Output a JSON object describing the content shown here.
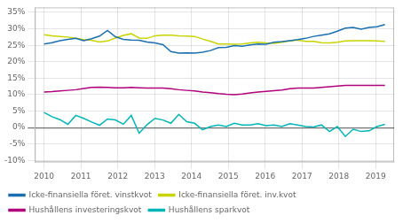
{
  "chart_data": {
    "type": "line",
    "x": [
      2010,
      2010.215116,
      2010.430233,
      2010.645349,
      2010.860465,
      2011.075581,
      2011.290698,
      2011.505814,
      2011.72093,
      2011.936047,
      2012.151163,
      2012.366279,
      2012.581395,
      2012.796512,
      2013.011628,
      2013.226744,
      2013.44186,
      2013.656977,
      2013.872093,
      2014.087209,
      2014.302326,
      2014.517442,
      2014.732558,
      2014.947674,
      2015.162791,
      2015.377907,
      2015.593023,
      2015.80814,
      2016.023256,
      2016.238372,
      2016.453488,
      2016.668605,
      2016.883721,
      2017.098837,
      2017.313953,
      2017.52907,
      2017.744186,
      2017.959302,
      2018.174419,
      2018.389535,
      2018.604651,
      2018.819767,
      2019.034884,
      2019.25
    ],
    "series": [
      {
        "name": "Icke-finansiella föret. vinstkvot",
        "color": "#1a6faf",
        "values": [
          0.254,
          0.258,
          0.264,
          0.268,
          0.271,
          0.264,
          0.27,
          0.278,
          0.295,
          0.276,
          0.268,
          0.266,
          0.265,
          0.26,
          0.257,
          0.252,
          0.231,
          0.226,
          0.227,
          0.226,
          0.229,
          0.234,
          0.243,
          0.244,
          0.249,
          0.247,
          0.251,
          0.254,
          0.253,
          0.259,
          0.261,
          0.264,
          0.267,
          0.271,
          0.277,
          0.281,
          0.285,
          0.293,
          0.302,
          0.304,
          0.299,
          0.304,
          0.306,
          0.313
        ]
      },
      {
        "name": "Icke-finansiella föret. inv.kvot",
        "color": "#c8d400",
        "values": [
          0.282,
          0.279,
          0.277,
          0.275,
          0.271,
          0.267,
          0.265,
          0.26,
          0.263,
          0.272,
          0.28,
          0.285,
          0.272,
          0.271,
          0.279,
          0.281,
          0.281,
          0.279,
          0.278,
          0.277,
          0.269,
          0.262,
          0.254,
          0.254,
          0.253,
          0.254,
          0.257,
          0.259,
          0.257,
          0.256,
          0.259,
          0.263,
          0.266,
          0.262,
          0.262,
          0.258,
          0.257,
          0.259,
          0.263,
          0.264,
          0.264,
          0.264,
          0.263,
          0.262
        ]
      },
      {
        "name": "Hushållens investeringskvot",
        "color": "#b0007a",
        "values": [
          0.108,
          0.109,
          0.111,
          0.113,
          0.115,
          0.119,
          0.122,
          0.123,
          0.122,
          0.121,
          0.121,
          0.122,
          0.121,
          0.12,
          0.12,
          0.12,
          0.118,
          0.115,
          0.113,
          0.111,
          0.108,
          0.106,
          0.103,
          0.101,
          0.1,
          0.102,
          0.105,
          0.108,
          0.11,
          0.112,
          0.114,
          0.118,
          0.12,
          0.12,
          0.12,
          0.122,
          0.124,
          0.126,
          0.128,
          0.128,
          0.128,
          0.128,
          0.128,
          0.128
        ]
      },
      {
        "name": "Hushållens sparkvot",
        "color": "#00b5b8",
        "values": [
          0.046,
          0.033,
          0.024,
          0.01,
          0.037,
          0.028,
          0.017,
          0.007,
          0.026,
          0.023,
          0.01,
          0.037,
          -0.017,
          0.009,
          0.028,
          0.023,
          0.013,
          0.04,
          0.018,
          0.013,
          -0.007,
          0.003,
          0.008,
          0.003,
          0.013,
          0.008,
          0.008,
          0.012,
          0.006,
          0.008,
          0.003,
          0.012,
          0.008,
          0.003,
          0.002,
          0.008,
          -0.012,
          0.003,
          -0.027,
          -0.005,
          -0.012,
          -0.01,
          0.003,
          0.01
        ]
      }
    ],
    "xlim": [
      2009.75,
      2019.5
    ],
    "xticks": [
      2010,
      2011,
      2012,
      2013,
      2014,
      2015,
      2016,
      2017,
      2018,
      2019
    ],
    "ylim": [
      -0.105,
      0.365
    ],
    "yticks": [
      {
        "value": -0.1,
        "label": "-10%"
      },
      {
        "value": -0.05,
        "label": "-5%"
      },
      {
        "value": 0.0,
        "label": "0%"
      },
      {
        "value": 0.05,
        "label": "5%"
      },
      {
        "value": 0.1,
        "label": "10%"
      },
      {
        "value": 0.15,
        "label": "15%"
      },
      {
        "value": 0.2,
        "label": "20%"
      },
      {
        "value": 0.25,
        "label": "25%"
      },
      {
        "value": 0.3,
        "label": "30%"
      },
      {
        "value": 0.35,
        "label": "35%"
      }
    ],
    "grid": true,
    "legend": "lower left"
  }
}
